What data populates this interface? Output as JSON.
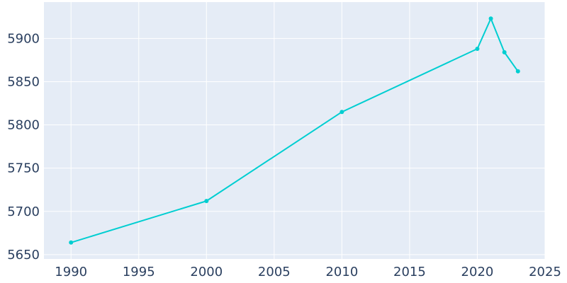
{
  "chart_data": {
    "type": "line",
    "title": "",
    "xlabel": "",
    "ylabel": "",
    "x": [
      1990,
      2000,
      2010,
      2020,
      2021,
      2022,
      2023
    ],
    "series": [
      {
        "values": [
          5664,
          5712,
          5815,
          5888,
          5923,
          5884,
          5862
        ]
      }
    ],
    "xlim": [
      1988,
      2025
    ],
    "ylim": [
      5645,
      5942
    ],
    "x_ticks": [
      1990,
      1995,
      2000,
      2005,
      2010,
      2015,
      2020,
      2025
    ],
    "y_ticks": [
      5650,
      5700,
      5750,
      5800,
      5850,
      5900
    ],
    "grid": true,
    "legend": "none",
    "colors": {
      "line": "#00CED1",
      "plot_background": "#E5ECF6",
      "grid": "#FFFFFF",
      "tick_text": "#2A3F5F"
    }
  }
}
